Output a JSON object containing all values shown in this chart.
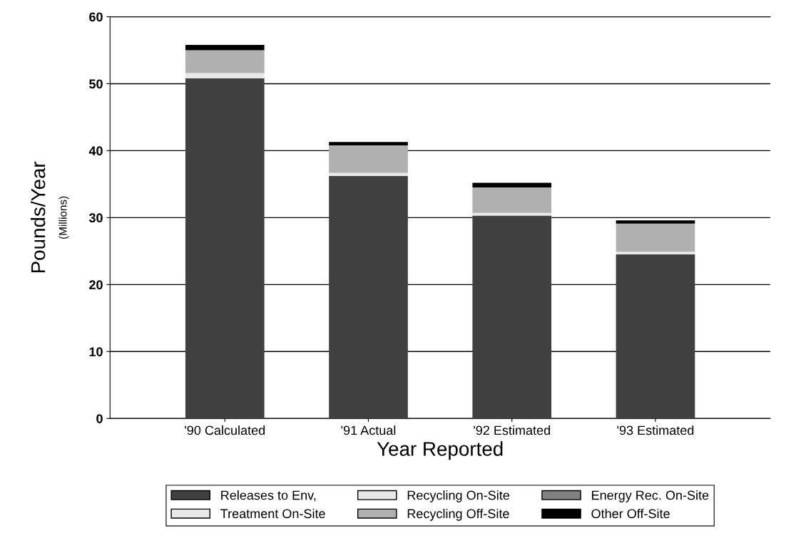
{
  "chart_data": {
    "type": "bar",
    "stacked": true,
    "xlabel": "Year Reported",
    "ylabel": "Pounds/Year",
    "annotations": [
      "(Millions)"
    ],
    "categories": [
      "'90 Calculated",
      "'91 Actual",
      "'92 Estimated",
      "'93 Estimated"
    ],
    "series": [
      {
        "name": "Releases to Env,",
        "color": "#404040",
        "values": [
          50.8,
          36.2,
          30.3,
          24.5
        ]
      },
      {
        "name": "Treatment On-Site",
        "color": "#e8e8e8",
        "values": [
          0,
          0,
          0,
          0
        ]
      },
      {
        "name": "Recycling On-Site",
        "color": "#e8e8e8",
        "values": [
          0.8,
          0.5,
          0.4,
          0.4
        ]
      },
      {
        "name": "Recycling Off-Site",
        "color": "#b0b0b0",
        "values": [
          3.4,
          4.1,
          3.8,
          4.2
        ]
      },
      {
        "name": "Energy Rec. On-Site",
        "color": "#808080",
        "values": [
          0,
          0,
          0,
          0
        ]
      },
      {
        "name": "Other Off-Site",
        "color": "#000000",
        "values": [
          0.8,
          0.5,
          0.7,
          0.5
        ]
      }
    ],
    "ylim": [
      0,
      60
    ],
    "yticks": [
      0,
      10,
      20,
      30,
      40,
      50,
      60
    ],
    "grid": "y",
    "legend": "bottom"
  }
}
